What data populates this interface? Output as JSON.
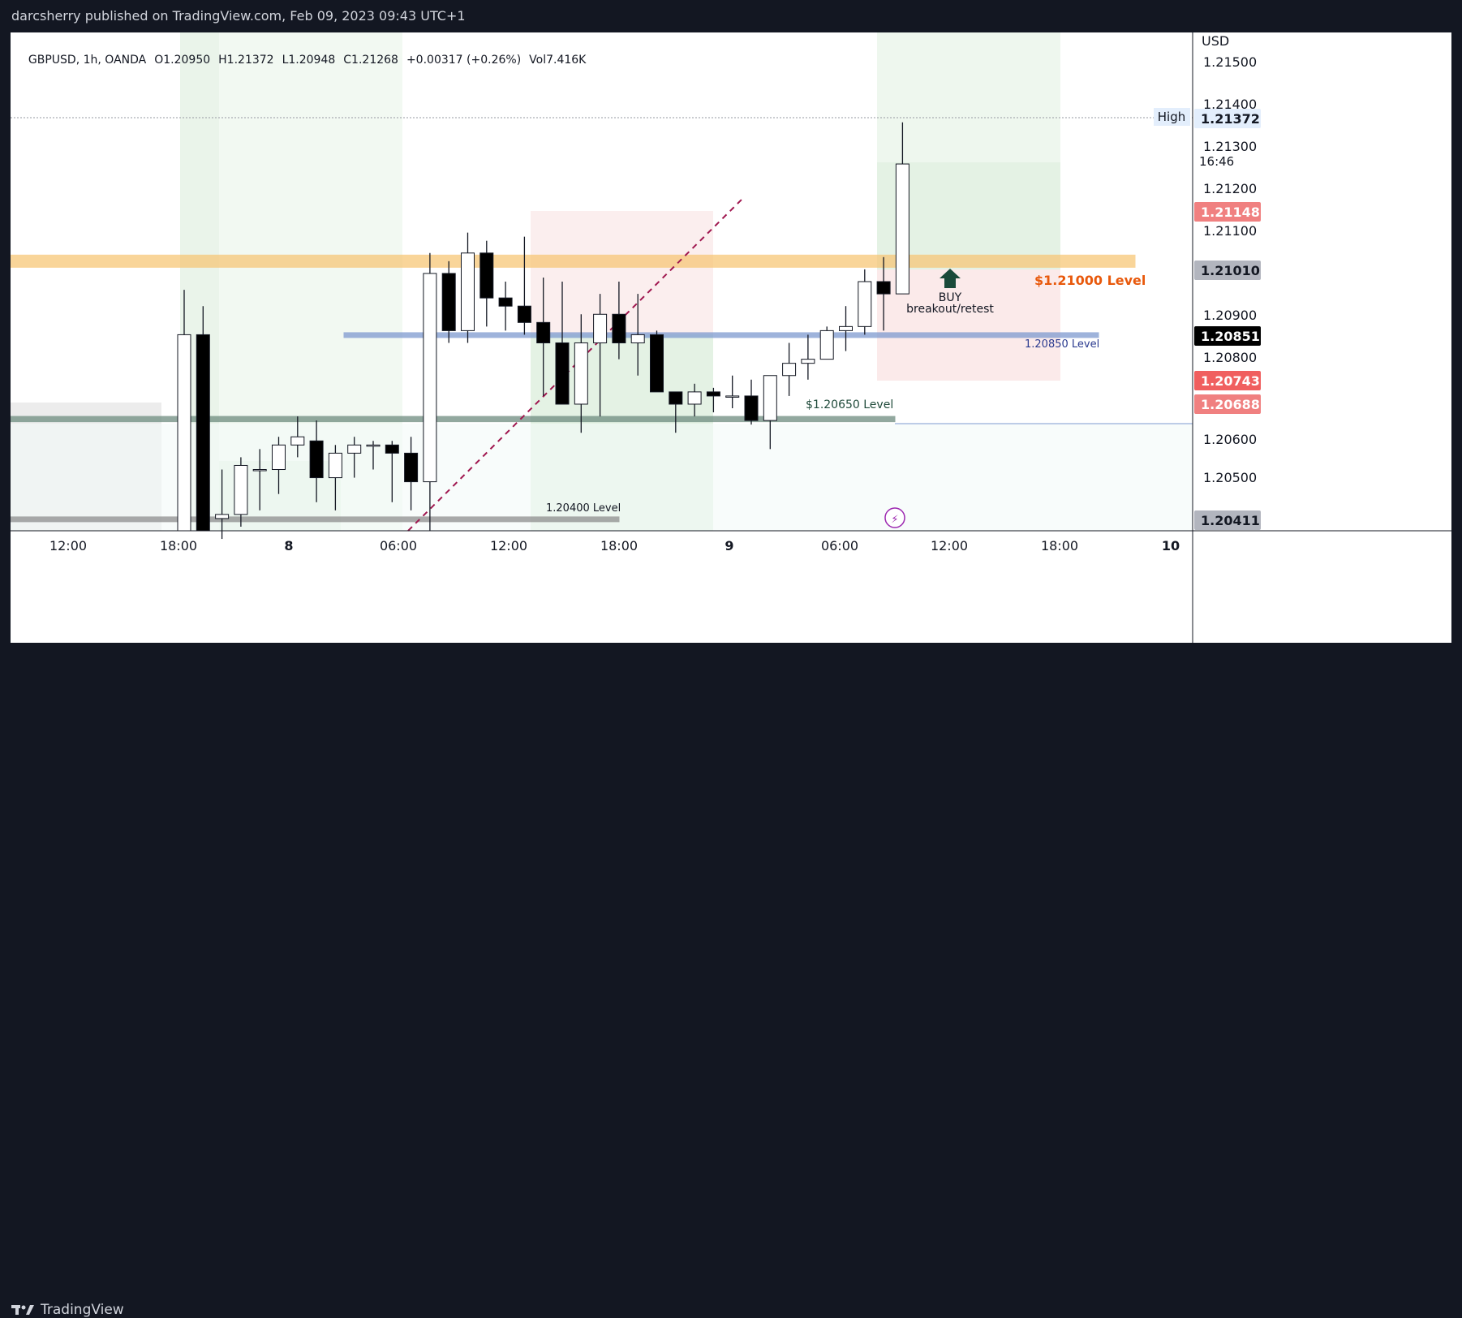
{
  "header": {
    "publisher": "darcsherry published on TradingView.com, Feb 09, 2023 09:43 UTC+1"
  },
  "legend": {
    "symbol": "GBPUSD, 1h, OANDA",
    "open": "O1.20950",
    "high": "H1.21372",
    "low": "L1.20948",
    "close": "C1.21268",
    "change": "+0.00317 (+0.26%)",
    "volume": "Vol7.416K"
  },
  "footer": {
    "brand": "TradingView"
  },
  "chart_data": {
    "type": "candlestick",
    "currency": "USD",
    "y_range": [
      1.2037,
      1.2159
    ],
    "x_ticks": [
      "12:00",
      "18:00",
      "8",
      "06:00",
      "12:00",
      "18:00",
      "9",
      "06:00",
      "12:00",
      "18:00",
      "10"
    ],
    "y_ticks": [
      "1.20500",
      "1.20600",
      "1.20800",
      "1.20900",
      "1.21100",
      "1.21200",
      "1.21300",
      "1.21400",
      "1.21500"
    ],
    "candles": [
      {
        "o": 1.2037,
        "h": 1.2096,
        "l": 1.2037,
        "c": 1.2085
      },
      {
        "o": 1.2085,
        "h": 1.2092,
        "l": 1.2037,
        "c": 1.2037
      },
      {
        "o": 1.204,
        "h": 1.2052,
        "l": 1.2035,
        "c": 1.2041
      },
      {
        "o": 1.2041,
        "h": 1.2055,
        "l": 1.2038,
        "c": 1.2053
      },
      {
        "o": 1.2052,
        "h": 1.2057,
        "l": 1.2042,
        "c": 1.2052
      },
      {
        "o": 1.2052,
        "h": 1.206,
        "l": 1.2046,
        "c": 1.2058
      },
      {
        "o": 1.2058,
        "h": 1.2065,
        "l": 1.2055,
        "c": 1.206
      },
      {
        "o": 1.2059,
        "h": 1.2064,
        "l": 1.2044,
        "c": 1.205
      },
      {
        "o": 1.205,
        "h": 1.2058,
        "l": 1.2042,
        "c": 1.2056
      },
      {
        "o": 1.2056,
        "h": 1.206,
        "l": 1.205,
        "c": 1.2058
      },
      {
        "o": 1.2058,
        "h": 1.2059,
        "l": 1.2052,
        "c": 1.2058
      },
      {
        "o": 1.2058,
        "h": 1.2059,
        "l": 1.2044,
        "c": 1.2056
      },
      {
        "o": 1.2056,
        "h": 1.206,
        "l": 1.2042,
        "c": 1.2049
      },
      {
        "o": 1.2049,
        "h": 1.2105,
        "l": 1.2037,
        "c": 1.21
      },
      {
        "o": 1.21,
        "h": 1.2103,
        "l": 1.2083,
        "c": 1.2086
      },
      {
        "o": 1.2086,
        "h": 1.211,
        "l": 1.2083,
        "c": 1.2105
      },
      {
        "o": 1.2105,
        "h": 1.2108,
        "l": 1.2087,
        "c": 1.2094
      },
      {
        "o": 1.2094,
        "h": 1.2098,
        "l": 1.2086,
        "c": 1.2092
      },
      {
        "o": 1.2092,
        "h": 1.2109,
        "l": 1.2085,
        "c": 1.2088
      },
      {
        "o": 1.2088,
        "h": 1.2099,
        "l": 1.207,
        "c": 1.2083
      },
      {
        "o": 1.2083,
        "h": 1.2098,
        "l": 1.2068,
        "c": 1.2068
      },
      {
        "o": 1.2068,
        "h": 1.209,
        "l": 1.2061,
        "c": 1.2083
      },
      {
        "o": 1.2083,
        "h": 1.2095,
        "l": 1.2065,
        "c": 1.209
      },
      {
        "o": 1.209,
        "h": 1.2098,
        "l": 1.2079,
        "c": 1.2083
      },
      {
        "o": 1.2083,
        "h": 1.2095,
        "l": 1.2075,
        "c": 1.2085
      },
      {
        "o": 1.2085,
        "h": 1.2086,
        "l": 1.2071,
        "c": 1.2071
      },
      {
        "o": 1.2071,
        "h": 1.2071,
        "l": 1.2061,
        "c": 1.2068
      },
      {
        "o": 1.2068,
        "h": 1.2073,
        "l": 1.2065,
        "c": 1.2071
      },
      {
        "o": 1.2071,
        "h": 1.2072,
        "l": 1.2066,
        "c": 1.207
      },
      {
        "o": 1.207,
        "h": 1.2075,
        "l": 1.2067,
        "c": 1.207
      },
      {
        "o": 1.207,
        "h": 1.2074,
        "l": 1.2063,
        "c": 1.2064
      },
      {
        "o": 1.2064,
        "h": 1.2074,
        "l": 1.2057,
        "c": 1.2075
      },
      {
        "o": 1.2075,
        "h": 1.2083,
        "l": 1.207,
        "c": 1.2078
      },
      {
        "o": 1.2078,
        "h": 1.2085,
        "l": 1.2074,
        "c": 1.2079
      },
      {
        "o": 1.2079,
        "h": 1.2087,
        "l": 1.2079,
        "c": 1.2086
      },
      {
        "o": 1.2086,
        "h": 1.2092,
        "l": 1.2081,
        "c": 1.2087
      },
      {
        "o": 1.2087,
        "h": 1.2101,
        "l": 1.2085,
        "c": 1.2098
      },
      {
        "o": 1.2098,
        "h": 1.2104,
        "l": 1.2086,
        "c": 1.2095
      },
      {
        "o": 1.2095,
        "h": 1.2137,
        "l": 1.2095,
        "c": 1.21268
      }
    ],
    "levels": [
      {
        "label": "$1.21000 Level",
        "from": 1.21015,
        "to": 1.21045,
        "color": "#f7c778"
      },
      {
        "label": "1.20850 Level",
        "from": 1.20845,
        "to": 1.20855,
        "color": "#7e9ad0"
      },
      {
        "label": "$1.20650 Level",
        "from": 1.20637,
        "to": 1.2065,
        "color": "#6e8c7f"
      },
      {
        "label": "1.20400 Level",
        "from": 1.20397,
        "to": 1.20404,
        "color": "#8e8e8e"
      }
    ],
    "annotations": {
      "buy_label": "BUY",
      "buy_sub": "breakout/retest",
      "high_label": "High",
      "timer": "16:46"
    },
    "price_badges": [
      {
        "text": "1.21372",
        "value": 1.21372,
        "bg": "#e3eefc",
        "fg": "#131722"
      },
      {
        "text": "1.21148",
        "value": 1.21148,
        "bg": "#f08080",
        "fg": "#ffffff"
      },
      {
        "text": "1.21010",
        "value": 1.2101,
        "bg": "#b2b5be",
        "fg": "#131722"
      },
      {
        "text": "1.20851",
        "value": 1.20851,
        "bg": "#000000",
        "fg": "#ffffff"
      },
      {
        "text": "1.20743",
        "value": 1.20743,
        "bg": "#f05f5f",
        "fg": "#ffffff"
      },
      {
        "text": "1.20688",
        "value": 1.20688,
        "bg": "#f08080",
        "fg": "#ffffff"
      },
      {
        "text": "1.20411",
        "value": 1.20411,
        "bg": "#b2b5be",
        "fg": "#131722"
      }
    ],
    "colors": {
      "up_body": "#ffffff",
      "down_body": "#000000",
      "wick": "#131722",
      "grid": "#e6e6e6"
    }
  }
}
